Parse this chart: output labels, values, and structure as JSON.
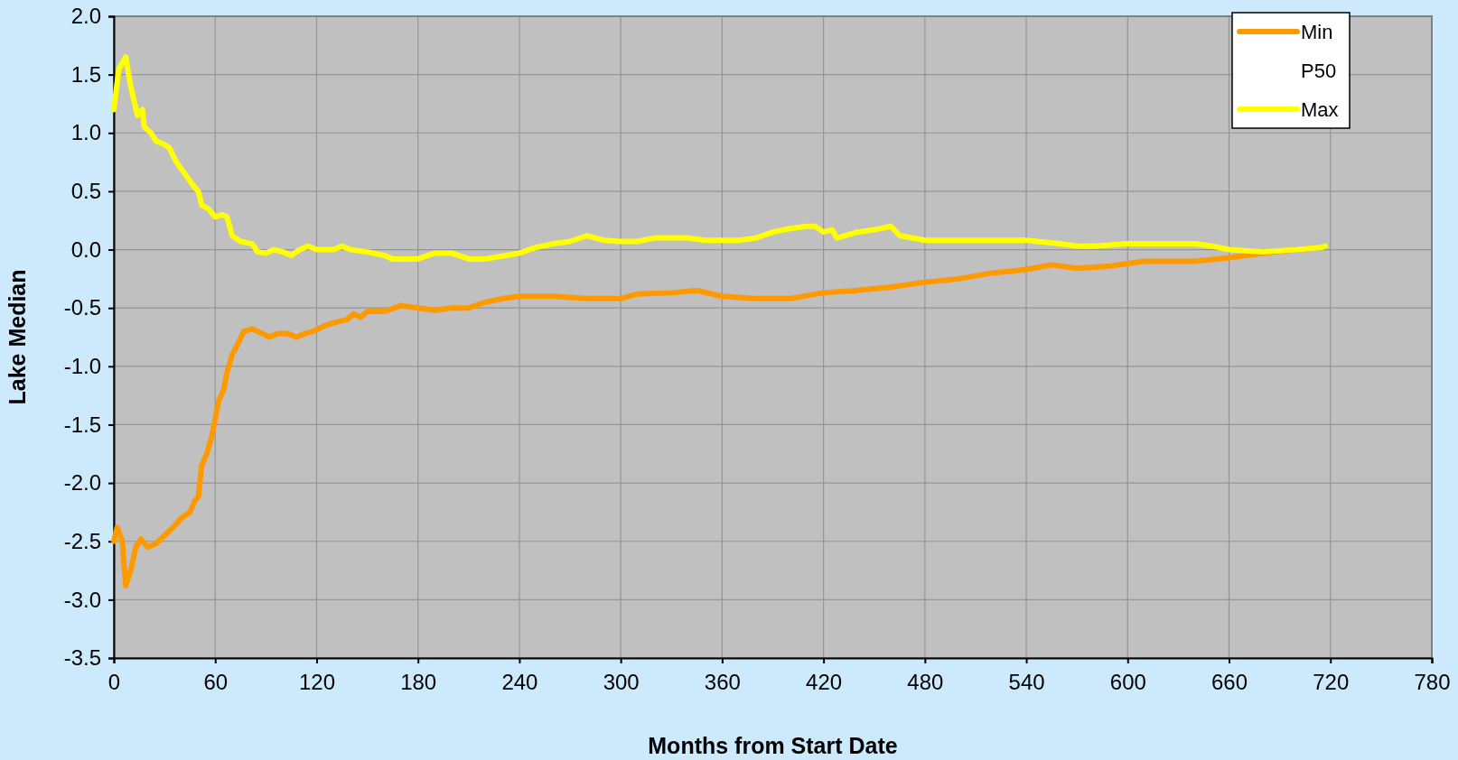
{
  "chart_data": {
    "type": "line",
    "xlabel": "Months from Start Date",
    "ylabel": "Lake Median",
    "xlim": [
      0,
      780
    ],
    "xticks": [
      0,
      60,
      120,
      180,
      240,
      300,
      360,
      420,
      480,
      540,
      600,
      660,
      720,
      780
    ],
    "ylim": [
      -3.5,
      2.0
    ],
    "yticks": [
      {
        "value": 2,
        "label": "2.0"
      },
      {
        "value": 1.5,
        "label": "1.5"
      },
      {
        "value": 1,
        "label": "1.0"
      },
      {
        "value": 0.5,
        "label": "0.5"
      },
      {
        "value": 0,
        "label": "0.0"
      },
      {
        "value": -0.5,
        "label": "-0.5"
      },
      {
        "value": -1,
        "label": "-1.0"
      },
      {
        "value": -1.5,
        "label": "-1.5"
      },
      {
        "value": -2,
        "label": "-2.0"
      },
      {
        "value": -2.5,
        "label": "-2.5"
      },
      {
        "value": -3,
        "label": "-3.0"
      },
      {
        "value": -3.5,
        "label": "-3.5"
      }
    ],
    "grid": true,
    "legend": "top right",
    "marker": "none",
    "line_style": "solid",
    "series": [
      {
        "name": "Min",
        "color": "#ff9900",
        "x": [
          0,
          2,
          5,
          7,
          10,
          13,
          16,
          20,
          25,
          30,
          35,
          40,
          45,
          48,
          50,
          52,
          55,
          58,
          60,
          62,
          65,
          67,
          70,
          73,
          77,
          82,
          88,
          92,
          97,
          103,
          108,
          113,
          118,
          125,
          132,
          138,
          142,
          146,
          150,
          160,
          170,
          180,
          190,
          200,
          210,
          220,
          230,
          240,
          260,
          280,
          300,
          310,
          330,
          345,
          360,
          380,
          400,
          420,
          440,
          460,
          480,
          500,
          520,
          540,
          555,
          570,
          590,
          600,
          610,
          640,
          660,
          680,
          700,
          715
        ],
        "values": [
          -2.5,
          -2.38,
          -2.5,
          -2.88,
          -2.75,
          -2.55,
          -2.48,
          -2.55,
          -2.52,
          -2.45,
          -2.38,
          -2.3,
          -2.25,
          -2.15,
          -2.12,
          -1.85,
          -1.75,
          -1.6,
          -1.45,
          -1.3,
          -1.2,
          -1.05,
          -0.9,
          -0.82,
          -0.7,
          -0.68,
          -0.72,
          -0.75,
          -0.72,
          -0.72,
          -0.75,
          -0.72,
          -0.7,
          -0.65,
          -0.62,
          -0.6,
          -0.55,
          -0.58,
          -0.53,
          -0.53,
          -0.48,
          -0.5,
          -0.52,
          -0.5,
          -0.5,
          -0.45,
          -0.42,
          -0.4,
          -0.4,
          -0.42,
          -0.42,
          -0.38,
          -0.37,
          -0.35,
          -0.4,
          -0.42,
          -0.42,
          -0.37,
          -0.35,
          -0.32,
          -0.28,
          -0.25,
          -0.2,
          -0.17,
          -0.13,
          -0.16,
          -0.14,
          -0.12,
          -0.1,
          -0.1,
          -0.07,
          -0.03,
          0.0,
          0.02
        ]
      },
      {
        "name": "P50"
      },
      {
        "name": "Max",
        "color": "#ffff00",
        "x": [
          0,
          3,
          5,
          7,
          10,
          14,
          17,
          18,
          22,
          25,
          30,
          33,
          37,
          42,
          47,
          50,
          52,
          56,
          60,
          64,
          67,
          70,
          75,
          82,
          85,
          90,
          95,
          100,
          105,
          110,
          115,
          120,
          130,
          135,
          140,
          150,
          160,
          165,
          180,
          190,
          200,
          210,
          220,
          240,
          250,
          260,
          270,
          280,
          290,
          300,
          310,
          320,
          330,
          340,
          350,
          370,
          380,
          390,
          400,
          410,
          415,
          420,
          425,
          428,
          440,
          450,
          460,
          465,
          480,
          500,
          520,
          540,
          560,
          570,
          580,
          600,
          620,
          640,
          650,
          660,
          680,
          700,
          715,
          717
        ],
        "values": [
          1.2,
          1.55,
          1.6,
          1.65,
          1.4,
          1.15,
          1.2,
          1.05,
          1.0,
          0.93,
          0.9,
          0.87,
          0.75,
          0.65,
          0.55,
          0.5,
          0.38,
          0.35,
          0.28,
          0.3,
          0.28,
          0.12,
          0.07,
          0.05,
          -0.02,
          -0.03,
          0.0,
          -0.02,
          -0.05,
          0.0,
          0.03,
          0.0,
          0.0,
          0.03,
          0.0,
          -0.02,
          -0.05,
          -0.08,
          -0.08,
          -0.03,
          -0.03,
          -0.08,
          -0.08,
          -0.03,
          0.02,
          0.05,
          0.07,
          0.12,
          0.08,
          0.07,
          0.07,
          0.1,
          0.1,
          0.1,
          0.08,
          0.08,
          0.1,
          0.15,
          0.18,
          0.2,
          0.2,
          0.15,
          0.17,
          0.1,
          0.15,
          0.17,
          0.2,
          0.12,
          0.08,
          0.08,
          0.08,
          0.08,
          0.05,
          0.03,
          0.03,
          0.05,
          0.05,
          0.05,
          0.03,
          0.0,
          -0.02,
          0.0,
          0.02,
          0.03
        ]
      }
    ]
  }
}
